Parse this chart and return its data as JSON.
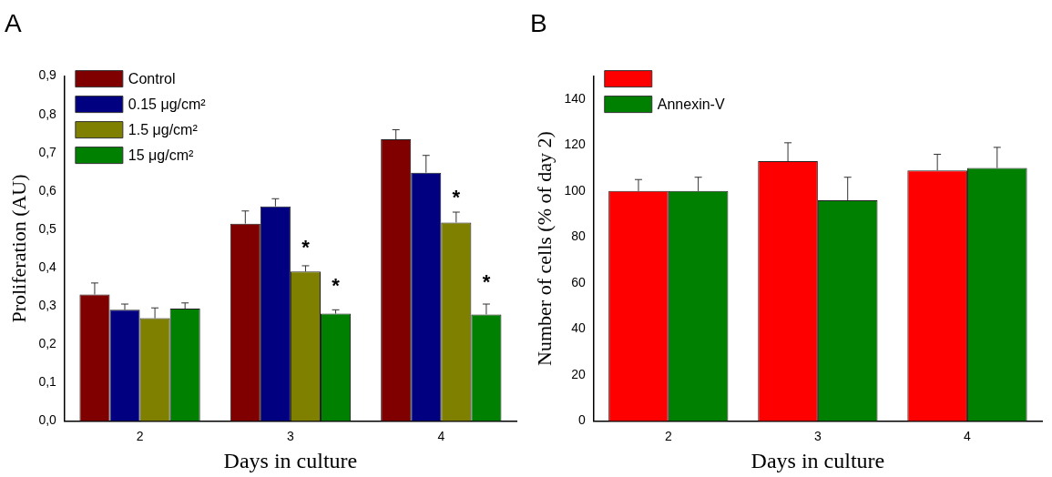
{
  "chart_data": [
    {
      "type": "bar",
      "title": "A",
      "xlabel": "Days in culture",
      "ylabel": "Proliferation (AU)",
      "categories": [
        "2",
        "3",
        "4"
      ],
      "series": [
        {
          "name": "Control",
          "color": "#800000",
          "values": [
            0.33,
            0.515,
            0.735
          ],
          "errors": [
            [
              0.33,
              0.36
            ],
            [
              0.515,
              0.548
            ],
            [
              0.735,
              0.76
            ]
          ]
        },
        {
          "name": "0.15 μg/cm²",
          "color": "#000080",
          "values": [
            0.29,
            0.56,
            0.648
          ],
          "errors": [
            [
              0.29,
              0.305
            ],
            [
              0.56,
              0.58
            ],
            [
              0.648,
              0.693
            ]
          ]
        },
        {
          "name": "1.5 μg/cm²",
          "color": "#808000",
          "values": [
            0.268,
            0.39,
            0.518
          ],
          "errors": [
            [
              0.268,
              0.295
            ],
            [
              0.39,
              0.405
            ],
            [
              0.518,
              0.545
            ]
          ]
        },
        {
          "name": "15 μg/cm²",
          "color": "#008000",
          "values": [
            0.293,
            0.28,
            0.278
          ],
          "errors": [
            [
              0.293,
              0.308
            ],
            [
              0.28,
              0.29
            ],
            [
              0.278,
              0.305
            ]
          ]
        }
      ],
      "ylim": [
        0,
        0.9
      ],
      "yticks": [
        {
          "value": 0,
          "label": "0,0"
        },
        {
          "value": 0.1,
          "label": "0,1"
        },
        {
          "value": 0.2,
          "label": "0,2"
        },
        {
          "value": 0.3,
          "label": "0,3"
        },
        {
          "value": 0.4,
          "label": "0,4"
        },
        {
          "value": 0.5,
          "label": "0,5"
        },
        {
          "value": 0.6,
          "label": "0,6"
        },
        {
          "value": 0.7,
          "label": "0,7"
        },
        {
          "value": 0.8,
          "label": "0,8"
        },
        {
          "value": 0.9,
          "label": "0,9"
        }
      ],
      "annotations": [
        {
          "text": "*",
          "x": "3",
          "y": 0.46
        },
        {
          "text": "*",
          "x": "3",
          "y": 0.36
        },
        {
          "text": "*",
          "x": "4",
          "y": 0.59
        },
        {
          "text": "*",
          "x": "4",
          "y": 0.37
        }
      ],
      "legend": "top left"
    },
    {
      "type": "bar",
      "title": "B",
      "xlabel": "Days in culture",
      "ylabel": "Number of cells (% of day 2)",
      "categories": [
        "2",
        "3",
        "4"
      ],
      "series": [
        {
          "color": "#ff0000",
          "values": [
            100,
            113,
            109
          ],
          "errors": [
            [
              100,
              105
            ],
            [
              113,
              121
            ],
            [
              109,
              116
            ]
          ]
        },
        {
          "name": "Annexin-V",
          "color": "#008000",
          "values": [
            100,
            96,
            110
          ],
          "errors": [
            [
              100,
              106
            ],
            [
              96,
              106
            ],
            [
              110,
              119
            ]
          ]
        }
      ],
      "ylim": [
        0,
        150
      ],
      "yticks": [
        0,
        20,
        40,
        60,
        80,
        100,
        120,
        140
      ],
      "legend": "top left"
    }
  ]
}
